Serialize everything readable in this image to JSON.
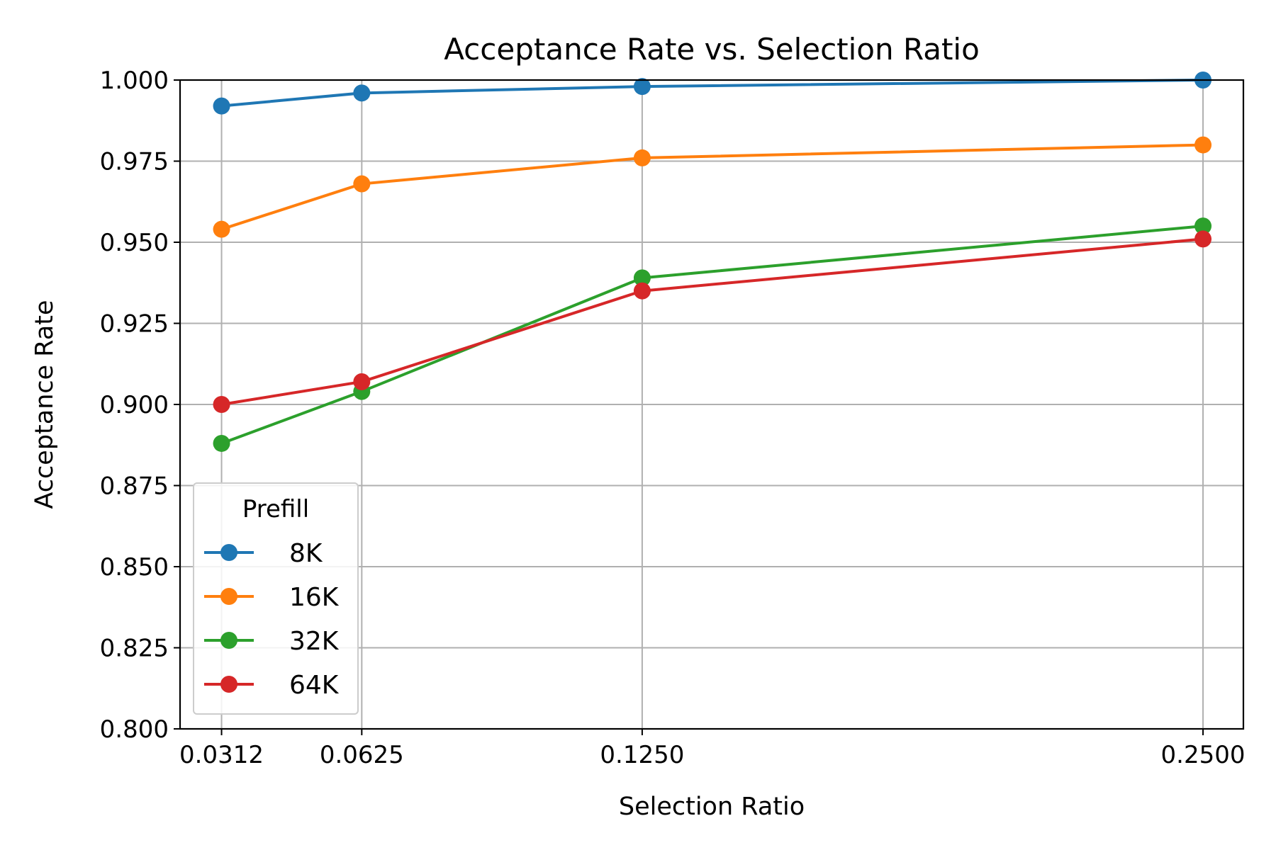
{
  "chart_data": {
    "type": "line",
    "title": "Acceptance Rate vs. Selection Ratio",
    "xlabel": "Selection Ratio",
    "ylabel": "Acceptance Rate",
    "x": [
      0.03125,
      0.0625,
      0.125,
      0.25
    ],
    "x_tick_labels": [
      "0.0312",
      "0.0625",
      "0.1250",
      "0.2500"
    ],
    "xlim": [
      0.022,
      0.259
    ],
    "ylim": [
      0.8,
      1.0
    ],
    "y_ticks": [
      0.8,
      0.825,
      0.85,
      0.875,
      0.9,
      0.925,
      0.95,
      0.975,
      1.0
    ],
    "y_tick_labels": [
      "0.800",
      "0.825",
      "0.850",
      "0.875",
      "0.900",
      "0.925",
      "0.950",
      "0.975",
      "1.000"
    ],
    "grid": true,
    "legend": {
      "title": "Prefill",
      "placement": "lower-left"
    },
    "series": [
      {
        "name": "8K",
        "color": "#1f77b4",
        "values": [
          0.992,
          0.996,
          0.998,
          1.0
        ]
      },
      {
        "name": "16K",
        "color": "#ff7f0e",
        "values": [
          0.954,
          0.968,
          0.976,
          0.98
        ]
      },
      {
        "name": "32K",
        "color": "#2ca02c",
        "values": [
          0.888,
          0.904,
          0.939,
          0.955
        ]
      },
      {
        "name": "64K",
        "color": "#d62728",
        "values": [
          0.9,
          0.907,
          0.935,
          0.951
        ]
      }
    ]
  }
}
